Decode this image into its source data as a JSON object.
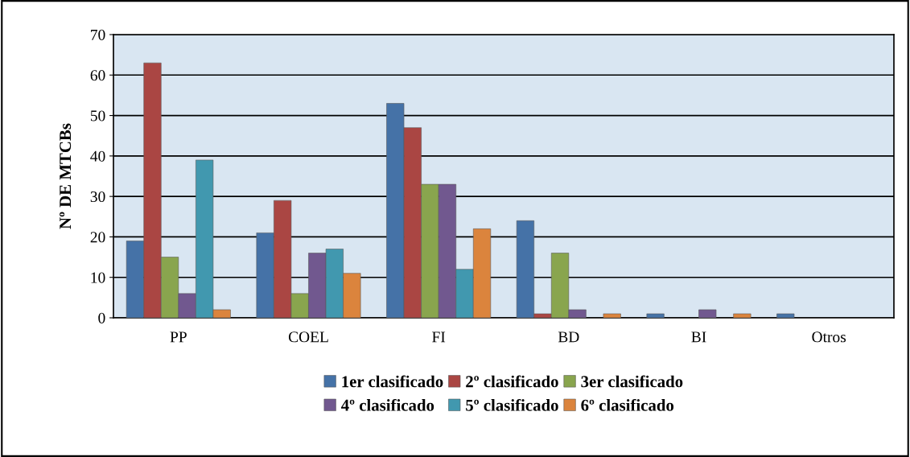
{
  "chart_data": {
    "type": "bar",
    "ylabel": "Nº DE MTCBs",
    "categories": [
      "PP",
      "COEL",
      "FI",
      "BD",
      "BI",
      "Otros"
    ],
    "series": [
      {
        "name": "1er clasificado",
        "color": "#4572a7",
        "values": [
          19,
          21,
          53,
          24,
          1,
          1
        ]
      },
      {
        "name": "2º clasificado",
        "color": "#aa4643",
        "values": [
          63,
          29,
          47,
          1,
          0,
          0
        ]
      },
      {
        "name": "3er clasificado",
        "color": "#89a54e",
        "values": [
          15,
          6,
          33,
          16,
          0,
          0
        ]
      },
      {
        "name": "4º clasificado",
        "color": "#71588f",
        "values": [
          6,
          16,
          33,
          2,
          2,
          0
        ]
      },
      {
        "name": "5º clasificado",
        "color": "#4198af",
        "values": [
          39,
          17,
          12,
          0,
          0,
          0
        ]
      },
      {
        "name": "6º clasificado",
        "color": "#db843d",
        "values": [
          2,
          11,
          22,
          1,
          1,
          0
        ]
      }
    ],
    "ylim": [
      0,
      70
    ],
    "yticks": [
      0,
      10,
      20,
      30,
      40,
      50,
      60,
      70
    ],
    "grid": "y",
    "legend": "bottom"
  }
}
